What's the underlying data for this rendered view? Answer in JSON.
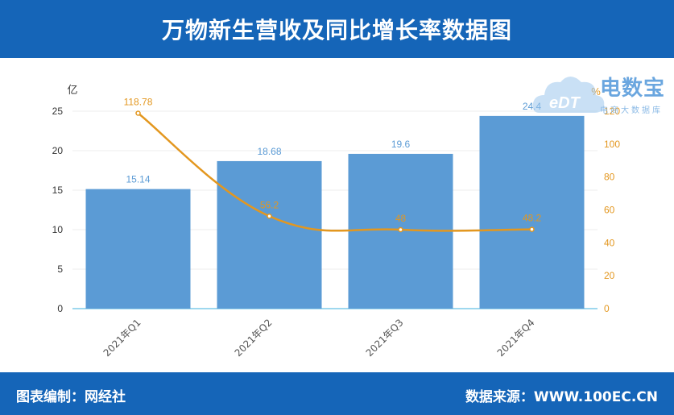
{
  "header": {
    "title": "万物新生营收及同比增长率数据图"
  },
  "footer": {
    "left": "图表编制：网经社",
    "right": "数据来源：WWW.100EC.CN"
  },
  "watermark": {
    "text": "电数宝",
    "subtext": "电商大数据库",
    "logo_text": "eDT"
  },
  "colors": {
    "header_bg": "#1565b8",
    "bar": "#5b9bd5",
    "line": "#e3971f",
    "bar_label": "#5b9bd5"
  },
  "chart_data": {
    "type": "bar",
    "categories": [
      "2021年Q1",
      "2021年Q2",
      "2021年Q3",
      "2021年Q4"
    ],
    "series": [
      {
        "type": "bar",
        "values": [
          15.14,
          18.68,
          19.6,
          24.4
        ],
        "axis": "left",
        "labels": [
          "15.14",
          "18.68",
          "19.6",
          "24.4"
        ]
      },
      {
        "type": "line",
        "values": [
          118.78,
          56.2,
          48,
          48.2
        ],
        "axis": "right",
        "labels": [
          "118.78",
          "56.2",
          "48",
          "48.2"
        ]
      }
    ],
    "y_left": {
      "unit_label": "亿",
      "ticks": [
        "0",
        "5",
        "10",
        "15",
        "20",
        "25"
      ],
      "lim": [
        0,
        25
      ]
    },
    "y_right": {
      "unit_label": "%",
      "ticks": [
        "0",
        "20",
        "40",
        "60",
        "80",
        "100",
        "120"
      ],
      "lim": [
        0,
        120
      ]
    },
    "grid": true,
    "legend": "none"
  }
}
